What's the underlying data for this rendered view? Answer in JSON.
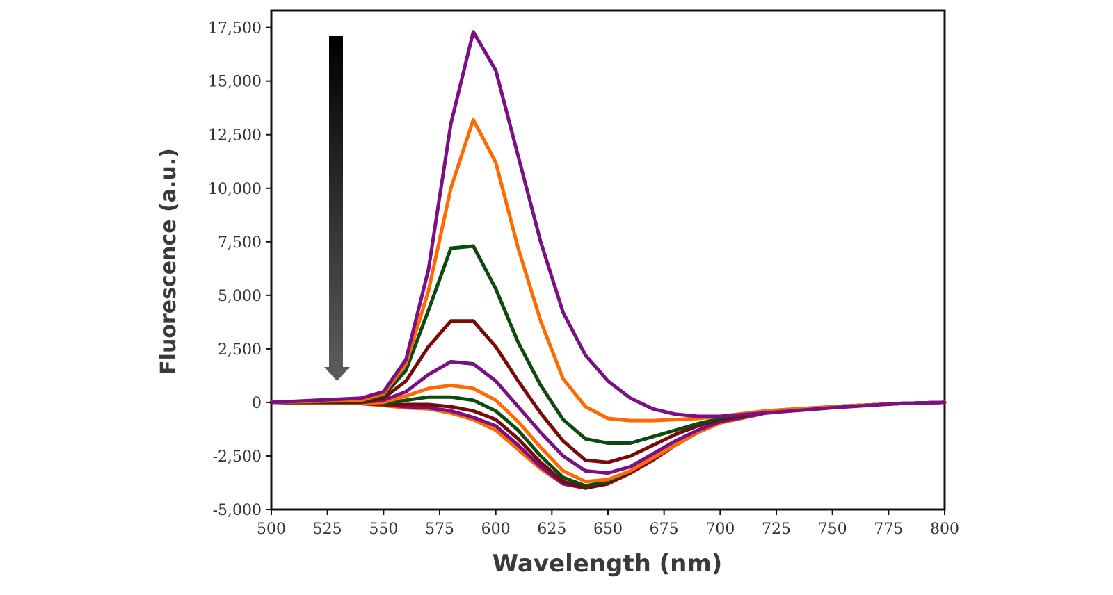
{
  "chart_data": {
    "type": "line",
    "title": "",
    "xlabel": "Wavelength (nm)",
    "ylabel": "Fluorescence (a.u.)",
    "xlim": [
      500,
      800
    ],
    "ylim": [
      -5000,
      17500
    ],
    "xticks": [
      500,
      525,
      550,
      575,
      600,
      625,
      650,
      675,
      700,
      725,
      750,
      775,
      800
    ],
    "yticks": [
      -5000,
      -2500,
      0,
      2500,
      5000,
      7500,
      10000,
      12500,
      15000,
      17500
    ],
    "xtick_labels": [
      "500",
      "525",
      "550",
      "575",
      "600",
      "625",
      "650",
      "675",
      "700",
      "725",
      "750",
      "775",
      "800"
    ],
    "ytick_labels": [
      "-5,000",
      "-2,500",
      "0",
      "2,500",
      "5,000",
      "7,500",
      "10,000",
      "12,500",
      "15,000",
      "17,500"
    ],
    "grid": false,
    "annotations": [
      {
        "kind": "arrow",
        "direction": "down",
        "x": 530,
        "y_from": 17000,
        "y_to": 1000,
        "style": "gradient black to grey"
      }
    ],
    "series": [
      {
        "color": "#7b0f86",
        "x": [
          500,
          540,
          550,
          560,
          570,
          580,
          590,
          600,
          610,
          620,
          630,
          640,
          650,
          660,
          670,
          680,
          690,
          700,
          720,
          750,
          780,
          800
        ],
        "y": [
          0,
          200,
          500,
          2000,
          6200,
          13000,
          17300,
          15500,
          11500,
          7500,
          4200,
          2200,
          1000,
          200,
          -300,
          -550,
          -650,
          -650,
          -500,
          -250,
          -50,
          0
        ]
      },
      {
        "color": "#ff6a00",
        "x": [
          500,
          540,
          550,
          560,
          570,
          580,
          590,
          600,
          610,
          620,
          630,
          640,
          650,
          660,
          670,
          680,
          690,
          700,
          720,
          750,
          780,
          800
        ],
        "y": [
          0,
          100,
          400,
          1800,
          5200,
          10000,
          13200,
          11200,
          7200,
          3800,
          1100,
          -200,
          -750,
          -850,
          -850,
          -800,
          -750,
          -650,
          -400,
          -200,
          -50,
          0
        ]
      },
      {
        "color": "#0d4a10",
        "x": [
          500,
          540,
          550,
          560,
          570,
          580,
          590,
          600,
          610,
          620,
          630,
          640,
          650,
          660,
          670,
          680,
          690,
          700,
          720,
          750,
          780,
          800
        ],
        "y": [
          0,
          50,
          300,
          1500,
          4300,
          7200,
          7300,
          5300,
          2800,
          800,
          -800,
          -1700,
          -1900,
          -1900,
          -1600,
          -1300,
          -1000,
          -750,
          -400,
          -200,
          -50,
          0
        ]
      },
      {
        "color": "#7a0a0a",
        "x": [
          500,
          540,
          550,
          560,
          570,
          580,
          590,
          600,
          610,
          620,
          630,
          640,
          650,
          660,
          670,
          680,
          690,
          700,
          720,
          750,
          780,
          800
        ],
        "y": [
          0,
          0,
          200,
          1000,
          2600,
          3800,
          3800,
          2600,
          1000,
          -500,
          -1800,
          -2700,
          -2800,
          -2500,
          -2000,
          -1500,
          -1100,
          -800,
          -450,
          -200,
          -50,
          0
        ]
      },
      {
        "color": "#7b0f86",
        "x": [
          500,
          540,
          550,
          560,
          570,
          580,
          590,
          600,
          610,
          620,
          630,
          640,
          650,
          660,
          670,
          680,
          690,
          700,
          720,
          750,
          780,
          800
        ],
        "y": [
          0,
          0,
          100,
          500,
          1300,
          1900,
          1800,
          1000,
          -200,
          -1400,
          -2500,
          -3200,
          -3300,
          -3000,
          -2400,
          -1800,
          -1300,
          -900,
          -500,
          -200,
          -50,
          0
        ]
      },
      {
        "color": "#ff6a00",
        "x": [
          500,
          540,
          550,
          560,
          570,
          580,
          590,
          600,
          610,
          620,
          630,
          640,
          650,
          660,
          670,
          680,
          690,
          700,
          720,
          750,
          780,
          800
        ],
        "y": [
          0,
          -50,
          0,
          300,
          650,
          800,
          650,
          100,
          -900,
          -2100,
          -3200,
          -3700,
          -3600,
          -3200,
          -2600,
          -2000,
          -1400,
          -950,
          -500,
          -200,
          -50,
          0
        ]
      },
      {
        "color": "#0d4a10",
        "x": [
          500,
          540,
          550,
          560,
          570,
          580,
          590,
          600,
          610,
          620,
          630,
          640,
          650,
          660,
          670,
          680,
          690,
          700,
          720,
          750,
          780,
          800
        ],
        "y": [
          0,
          -50,
          -50,
          100,
          250,
          250,
          100,
          -400,
          -1300,
          -2500,
          -3500,
          -3900,
          -3700,
          -3200,
          -2600,
          -2000,
          -1400,
          -950,
          -500,
          -200,
          -50,
          0
        ]
      },
      {
        "color": "#7a0a0a",
        "x": [
          500,
          540,
          550,
          560,
          570,
          580,
          590,
          600,
          610,
          620,
          630,
          640,
          650,
          660,
          670,
          680,
          690,
          700,
          720,
          750,
          780,
          800
        ],
        "y": [
          0,
          -50,
          -100,
          -100,
          -100,
          -200,
          -400,
          -800,
          -1700,
          -2800,
          -3700,
          -4000,
          -3800,
          -3300,
          -2700,
          -2000,
          -1400,
          -950,
          -500,
          -200,
          -50,
          0
        ]
      },
      {
        "color": "#7b0f86",
        "x": [
          500,
          540,
          550,
          560,
          570,
          580,
          590,
          600,
          610,
          620,
          630,
          640,
          650,
          660,
          670,
          680,
          690,
          700,
          720,
          750,
          780,
          800
        ],
        "y": [
          0,
          -50,
          -100,
          -200,
          -250,
          -400,
          -700,
          -1100,
          -2000,
          -3000,
          -3800,
          -4000,
          -3700,
          -3200,
          -2600,
          -2000,
          -1400,
          -950,
          -500,
          -200,
          -50,
          0
        ]
      },
      {
        "color": "#ff6a00",
        "x": [
          500,
          540,
          550,
          560,
          570,
          580,
          590,
          600,
          610,
          620,
          630,
          640,
          650,
          660,
          670,
          680,
          690,
          700,
          720,
          750,
          780,
          800
        ],
        "y": [
          0,
          -50,
          -150,
          -250,
          -300,
          -500,
          -800,
          -1300,
          -2200,
          -3100,
          -3800,
          -4000,
          -3700,
          -3200,
          -2600,
          -2000,
          -1400,
          -950,
          -500,
          -200,
          -50,
          0
        ]
      }
    ]
  }
}
